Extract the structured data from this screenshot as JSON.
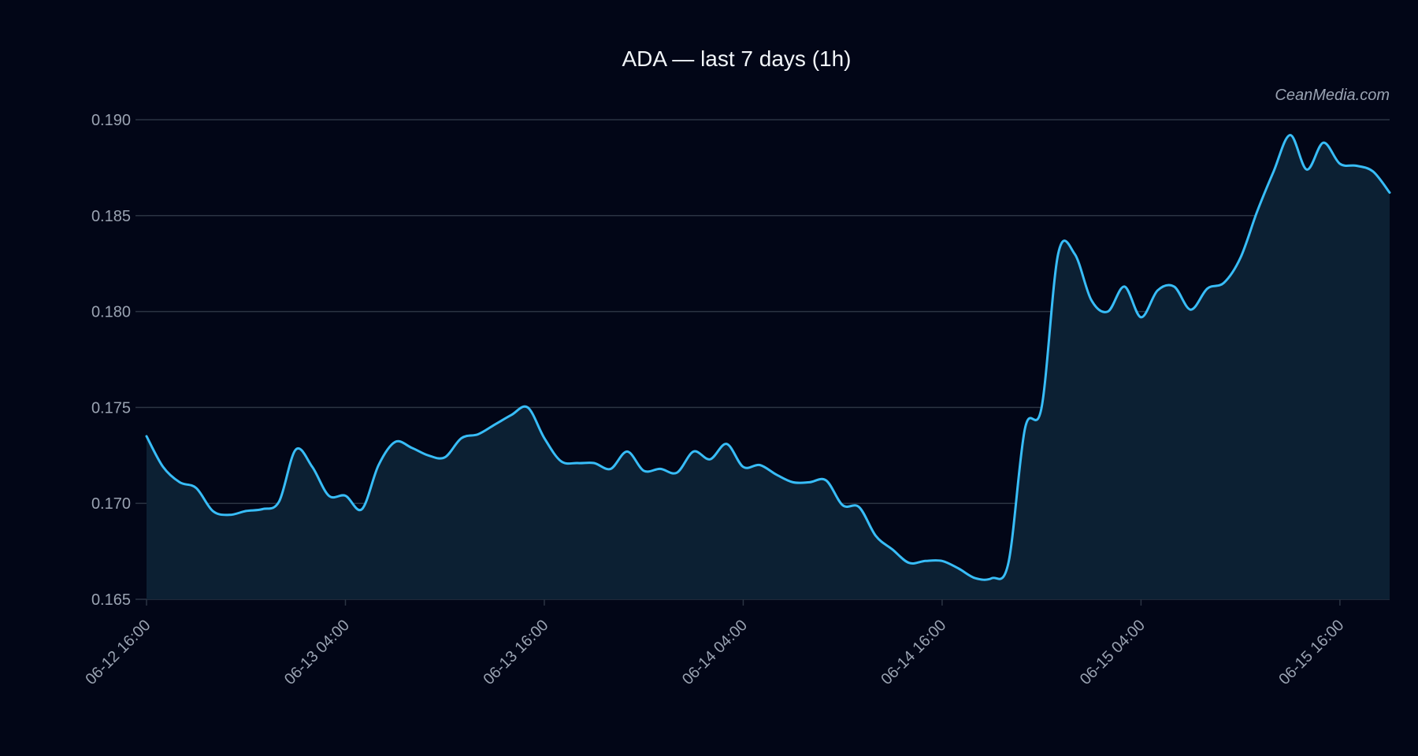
{
  "title": "ADA — last 7 days (1h)",
  "watermark": "CeanMedia.com",
  "colors": {
    "background": "#020617",
    "line": "#38bdf8",
    "fill": "#0c2033",
    "grid": "#2b3443",
    "text": "#9aa3b2",
    "title": "#f1f5f9"
  },
  "chart_data": {
    "type": "area",
    "title": "ADA — last 7 days (1h)",
    "xlabel": "",
    "ylabel": "",
    "ylim": [
      0.165,
      0.19
    ],
    "yticks": [
      0.165,
      0.17,
      0.175,
      0.18,
      0.185,
      0.19
    ],
    "ytick_labels": [
      "0.165",
      "0.170",
      "0.175",
      "0.180",
      "0.185",
      "0.190"
    ],
    "xlim_hours": [
      0,
      75
    ],
    "xticks_hours": [
      0,
      12,
      24,
      36,
      48,
      60,
      72
    ],
    "xtick_labels": [
      "06-12 16:00",
      "06-13 04:00",
      "06-13 16:00",
      "06-14 04:00",
      "06-14 16:00",
      "06-15 04:00",
      "06-15 16:00"
    ],
    "grid": true,
    "legend": "none",
    "series": [
      {
        "x": [
          "06-12 16:00",
          "06-12 17:00",
          "06-12 18:00",
          "06-12 19:00",
          "06-12 20:00",
          "06-12 21:00",
          "06-12 22:00",
          "06-12 23:00",
          "06-13 00:00",
          "06-13 01:00",
          "06-13 02:00",
          "06-13 03:00",
          "06-13 04:00",
          "06-13 05:00",
          "06-13 06:00",
          "06-13 07:00",
          "06-13 08:00",
          "06-13 09:00",
          "06-13 10:00",
          "06-13 11:00",
          "06-13 12:00",
          "06-13 13:00",
          "06-13 14:00",
          "06-13 15:00",
          "06-13 16:00",
          "06-13 17:00",
          "06-13 18:00",
          "06-13 19:00",
          "06-13 20:00",
          "06-13 21:00",
          "06-13 22:00",
          "06-13 23:00",
          "06-14 00:00",
          "06-14 01:00",
          "06-14 02:00",
          "06-14 03:00",
          "06-14 04:00",
          "06-14 05:00",
          "06-14 06:00",
          "06-14 07:00",
          "06-14 08:00",
          "06-14 09:00",
          "06-14 10:00",
          "06-14 11:00",
          "06-14 12:00",
          "06-14 13:00",
          "06-14 14:00",
          "06-14 15:00",
          "06-14 16:00",
          "06-14 17:00",
          "06-14 18:00",
          "06-14 19:00",
          "06-14 20:00",
          "06-14 21:00",
          "06-14 22:00",
          "06-14 23:00",
          "06-15 00:00",
          "06-15 01:00",
          "06-15 02:00",
          "06-15 03:00",
          "06-15 04:00",
          "06-15 05:00",
          "06-15 06:00",
          "06-15 07:00",
          "06-15 08:00",
          "06-15 09:00",
          "06-15 10:00",
          "06-15 11:00",
          "06-15 12:00",
          "06-15 13:00",
          "06-15 14:00",
          "06-15 15:00",
          "06-15 16:00",
          "06-15 17:00",
          "06-15 18:00",
          "06-15 19:00"
        ],
        "values": [
          0.1735,
          0.1719,
          0.1711,
          0.1708,
          0.1696,
          0.1694,
          0.1696,
          0.1697,
          0.1701,
          0.1728,
          0.1719,
          0.1704,
          0.1704,
          0.1697,
          0.172,
          0.1732,
          0.1729,
          0.1725,
          0.1724,
          0.1734,
          0.1736,
          0.1741,
          0.1746,
          0.175,
          0.1734,
          0.1722,
          0.1721,
          0.1721,
          0.1718,
          0.1727,
          0.1717,
          0.1718,
          0.1716,
          0.1727,
          0.1723,
          0.1731,
          0.1719,
          0.172,
          0.1715,
          0.1711,
          0.1711,
          0.1712,
          0.1699,
          0.1698,
          0.1683,
          0.1676,
          0.1669,
          0.167,
          0.167,
          0.1666,
          0.1661,
          0.1661,
          0.1669,
          0.1739,
          0.175,
          0.183,
          0.183,
          0.1806,
          0.18,
          0.1813,
          0.1797,
          0.1811,
          0.1813,
          0.1801,
          0.1812,
          0.1815,
          0.1828,
          0.1852,
          0.1873,
          0.1892,
          0.1874,
          0.1888,
          0.1877,
          0.1876,
          0.1873,
          0.1862
        ]
      }
    ]
  }
}
